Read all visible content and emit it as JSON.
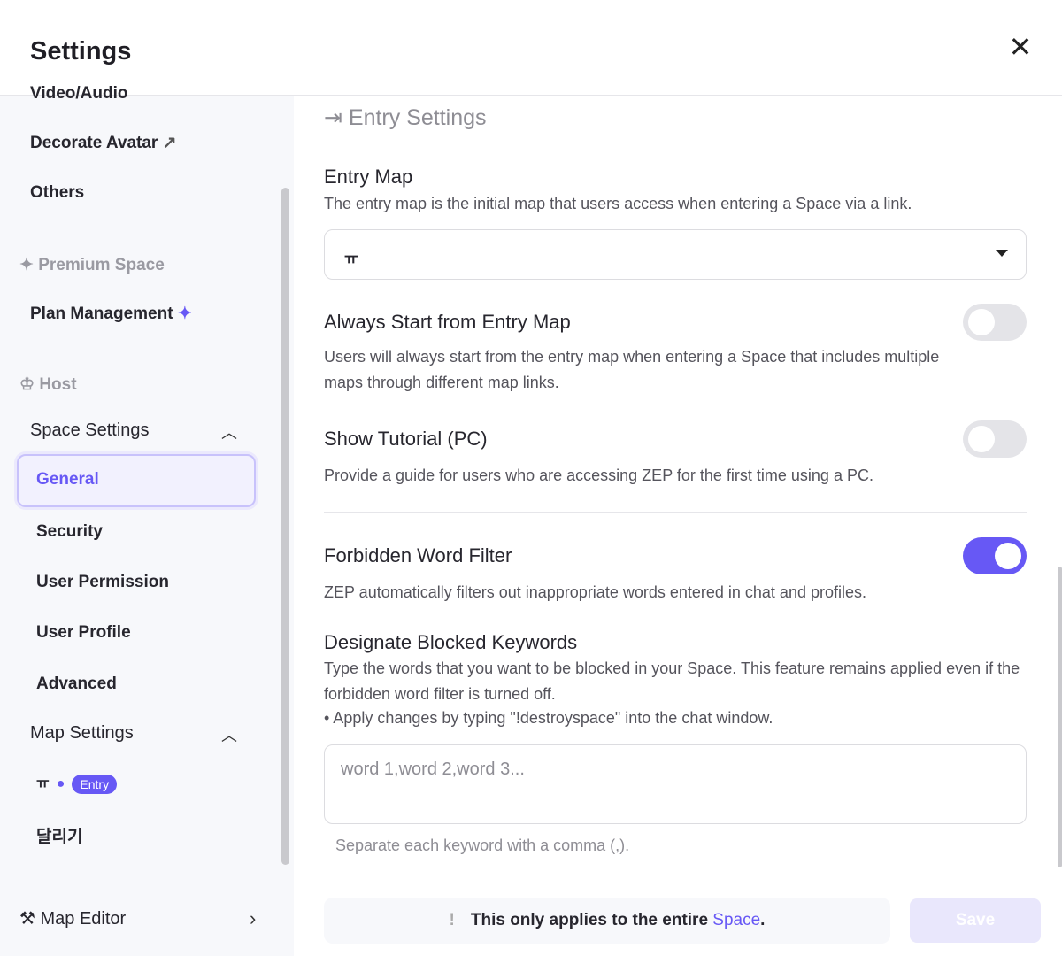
{
  "header": {
    "title": "Settings",
    "close_icon": "close-icon"
  },
  "sidebar": {
    "partial_item": "Video/Audio",
    "decorate_avatar": "Decorate Avatar",
    "others": "Others",
    "premium_heading": "Premium Space",
    "plan_management": "Plan Management",
    "host_heading": "Host",
    "space_settings": "Space Settings",
    "space_items": [
      "General",
      "Security",
      "User Permission",
      "User Profile",
      "Advanced"
    ],
    "map_settings": "Map Settings",
    "maps": [
      {
        "name": "ㅠ",
        "badge": "Entry"
      },
      {
        "name": "달리기"
      }
    ],
    "map_editor": "Map Editor"
  },
  "main": {
    "section_title": "Entry Settings",
    "entry_map": {
      "title": "Entry Map",
      "desc": "The entry map is the initial map that users access when entering a Space via a link.",
      "value": "ㅠ"
    },
    "always_start": {
      "title": "Always Start from Entry Map",
      "desc": "Users will always start from the entry map when entering a Space that includes multiple maps through different map links.",
      "enabled": false
    },
    "tutorial": {
      "title": "Show Tutorial (PC)",
      "desc": "Provide a guide for users who are accessing ZEP for the first time using a PC.",
      "enabled": false
    },
    "filter": {
      "title": "Forbidden Word Filter",
      "desc": "ZEP automatically filters out inappropriate words entered in chat and profiles.",
      "enabled": true
    },
    "blocked": {
      "title": "Designate Blocked Keywords",
      "desc": "Type the words that you want to be blocked in your Space. This feature remains applied even if the forbidden word filter is turned off.",
      "bullet": "• Apply changes by typing \"!destroyspace\" into the chat window.",
      "placeholder": "word 1,word 2,word 3...",
      "hint": "Separate each keyword with a comma (,)."
    }
  },
  "footer": {
    "note_prefix": "This only applies to the entire",
    "note_link": "Space",
    "note_suffix": ".",
    "save": "Save"
  },
  "colors": {
    "accent": "#6758f5"
  }
}
